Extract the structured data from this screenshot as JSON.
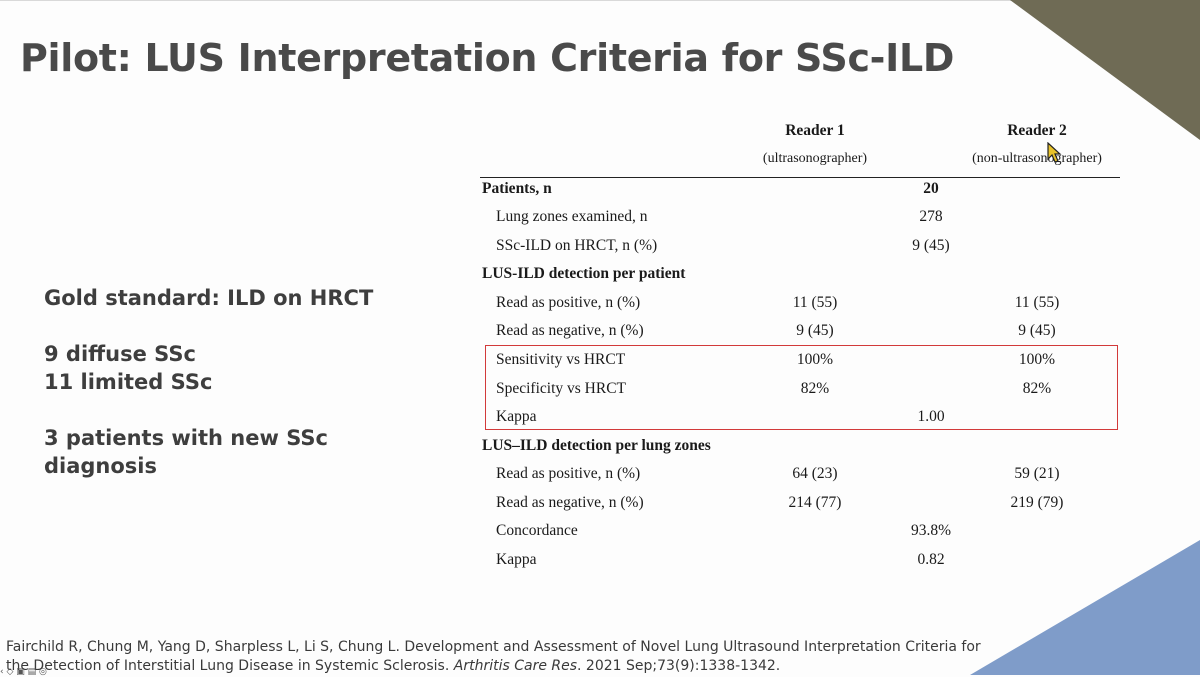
{
  "slide": {
    "title": "Pilot: LUS Interpretation Criteria for SSc-ILD",
    "left_lines": [
      "Gold standard: ILD on HRCT",
      "9 diffuse SSc",
      "11 limited SSc",
      "3 patients with new SSc",
      "diagnosis"
    ],
    "colors": {
      "title": "#4a4a4a",
      "corner_top": "#6f6b55",
      "corner_bottom": "#7f9cc9",
      "highlight_box": "#d23a3a"
    }
  },
  "table": {
    "reader1": {
      "name": "Reader 1",
      "role": "(ultrasonographer)"
    },
    "reader2": {
      "name": "Reader 2",
      "role": "(non-ultrasonographer)"
    },
    "rows": [
      {
        "label": "Patients, n",
        "r1": "",
        "both": "20",
        "r2": "",
        "bold": true
      },
      {
        "label": "Lung zones examined, n",
        "r1": "",
        "both": "278",
        "r2": ""
      },
      {
        "label": "SSc-ILD on HRCT, n (%)",
        "r1": "",
        "both": "9 (45)",
        "r2": ""
      },
      {
        "label": "LUS-ILD detection per patient",
        "r1": "",
        "both": "",
        "r2": "",
        "bold": true
      },
      {
        "label": "Read as positive, n (%)",
        "r1": "11 (55)",
        "both": "",
        "r2": "11 (55)"
      },
      {
        "label": "Read as negative, n (%)",
        "r1": "9 (45)",
        "both": "",
        "r2": "9 (45)"
      },
      {
        "label": "Sensitivity vs HRCT",
        "r1": "100%",
        "both": "",
        "r2": "100%"
      },
      {
        "label": "Specificity vs HRCT",
        "r1": "82%",
        "both": "",
        "r2": "82%"
      },
      {
        "label": "Kappa",
        "r1": "",
        "both": "1.00",
        "r2": ""
      },
      {
        "label": "LUS–ILD detection per lung zones",
        "r1": "",
        "both": "",
        "r2": "",
        "bold": true
      },
      {
        "label": "Read as positive, n (%)",
        "r1": "64 (23)",
        "both": "",
        "r2": "59 (21)"
      },
      {
        "label": "Read as negative, n (%)",
        "r1": "214 (77)",
        "both": "",
        "r2": "219 (79)"
      },
      {
        "label": "Concordance",
        "r1": "",
        "both": "93.8%",
        "r2": ""
      },
      {
        "label": "Kappa",
        "r1": "",
        "both": "0.82",
        "r2": ""
      }
    ]
  },
  "citation": {
    "line1": "Fairchild R, Chung M, Yang D, Sharpless L, Li S, Chung L. Development and Assessment of Novel Lung Ultrasound Interpretation Criteria for",
    "line2_pre": "the Detection of Interstitial Lung Disease in Systemic Sclerosis.",
    "journal": "Arthritis Care Res",
    "line2_post": ". 2021 Sep;73(9):1338-1342."
  },
  "controls": {
    "text": "‹ ◇ ▣ ▤ ◎"
  }
}
